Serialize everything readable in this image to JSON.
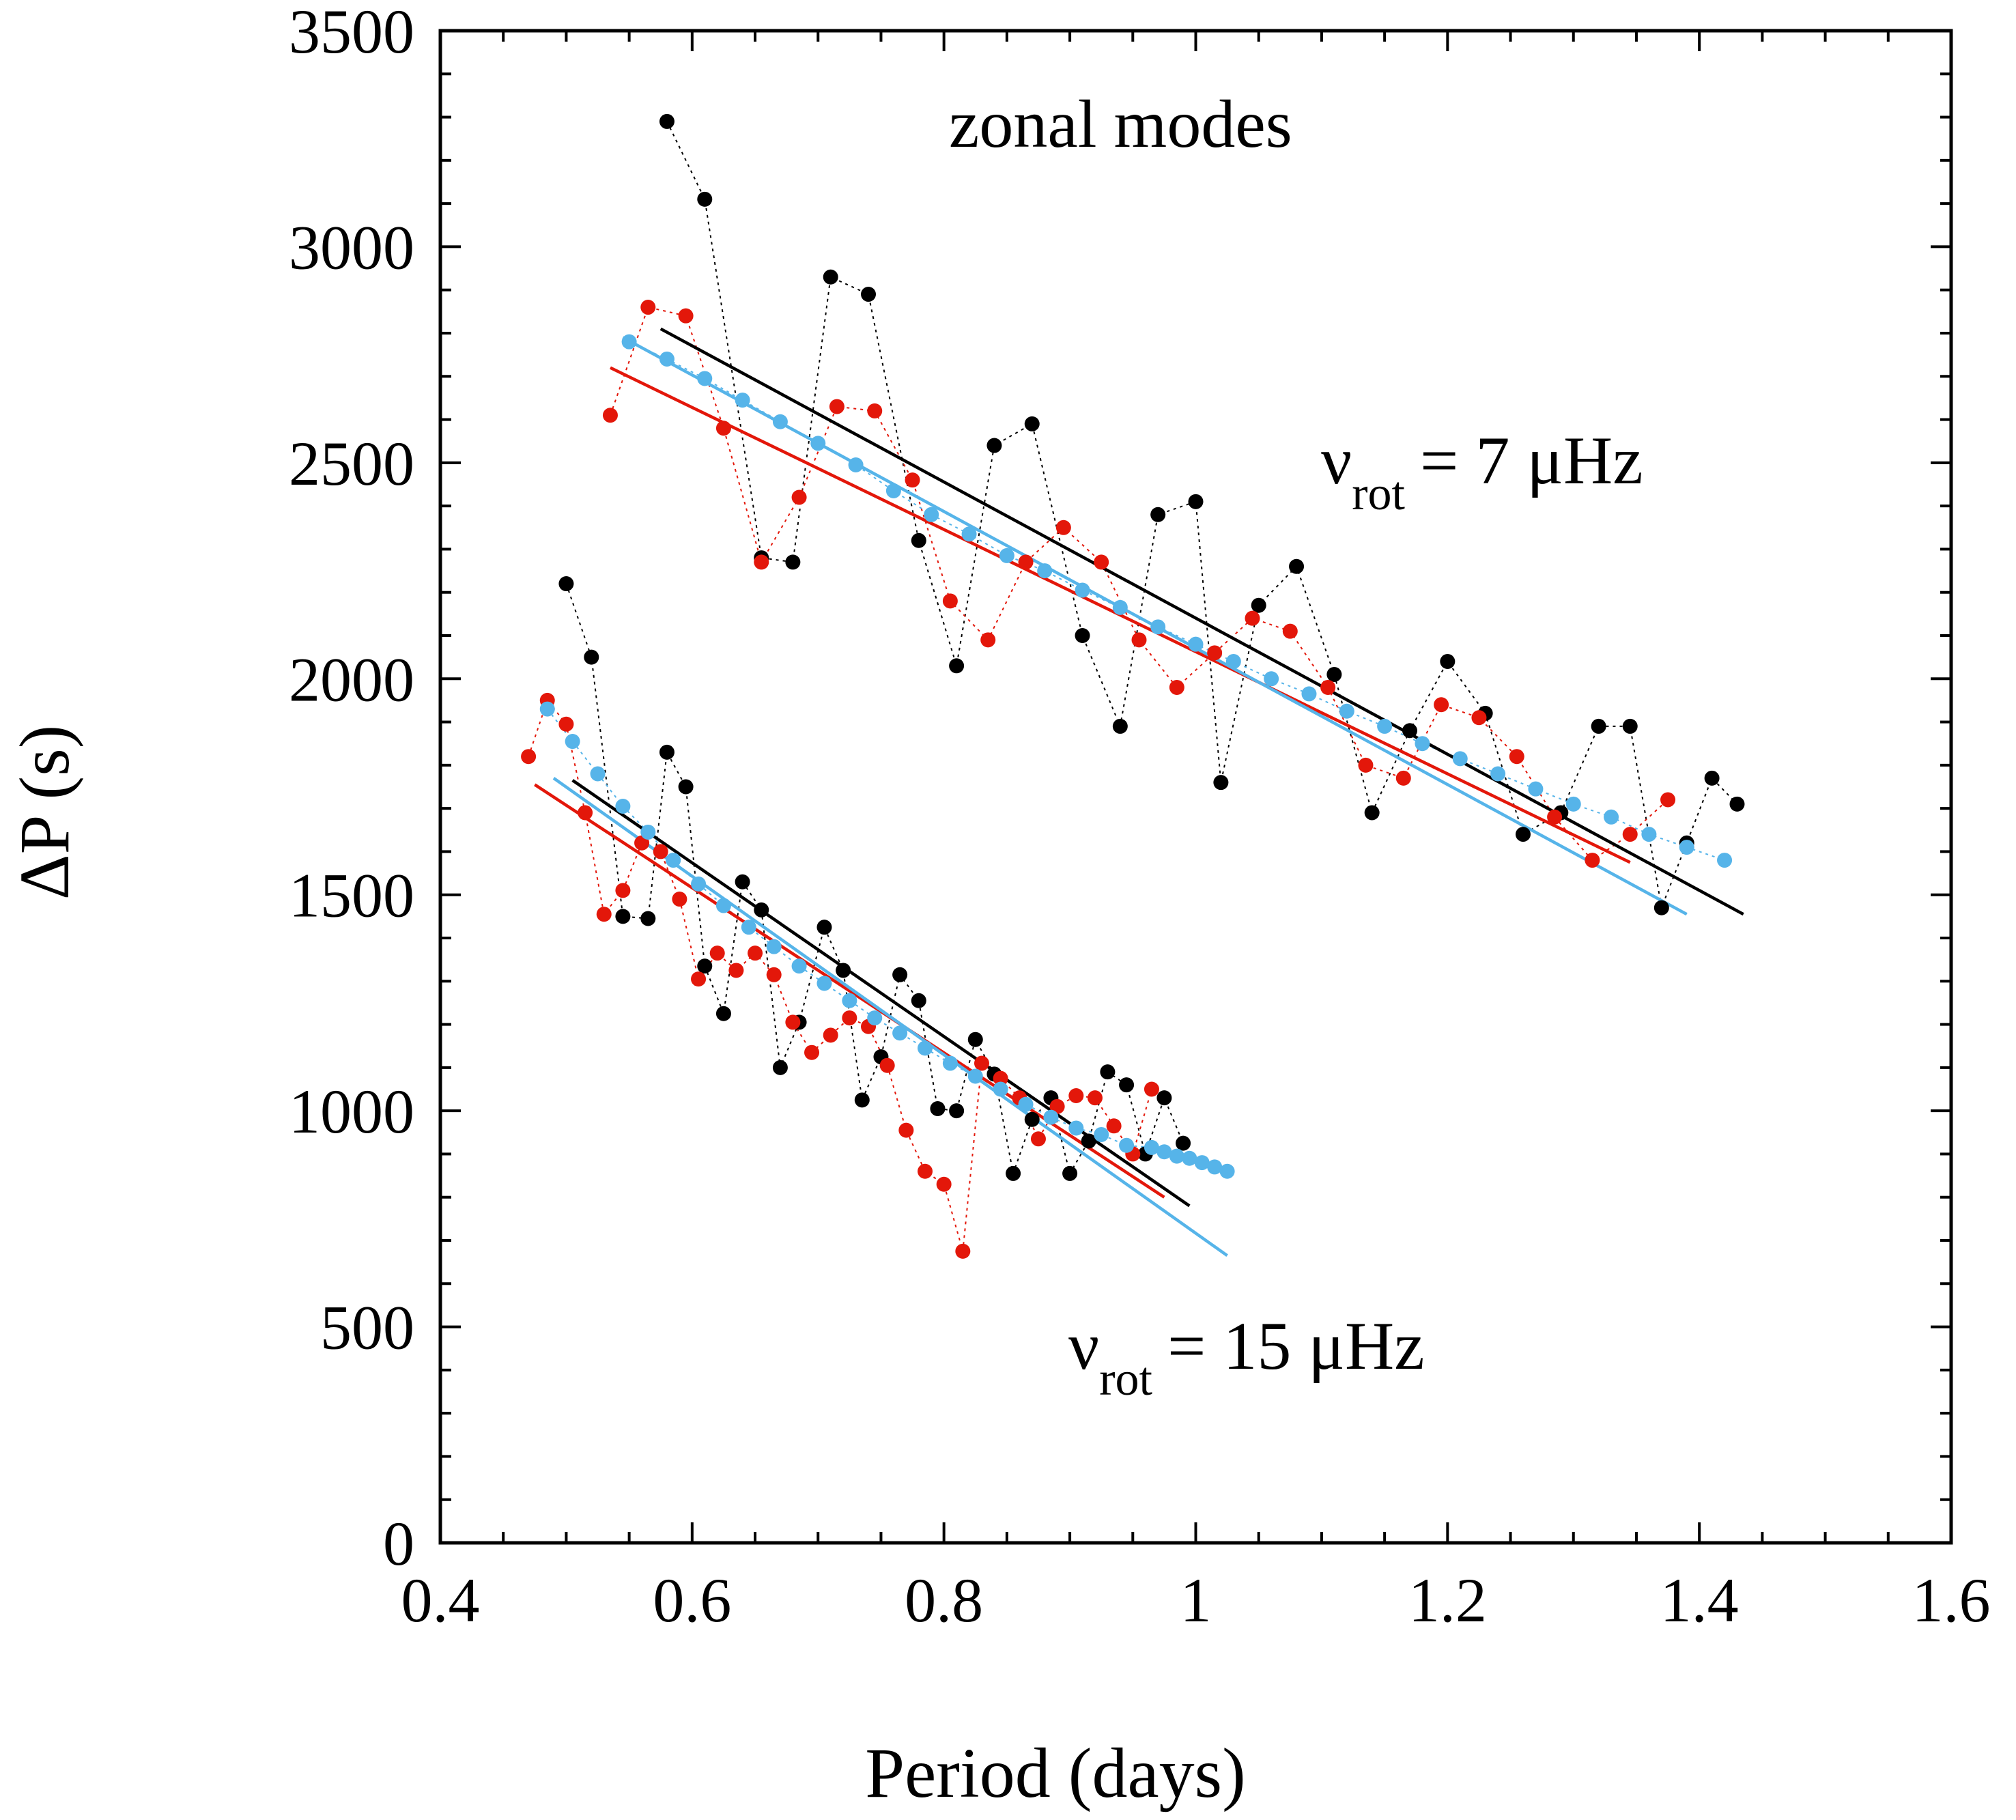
{
  "chart_data": {
    "type": "scatter",
    "title": "",
    "xlabel": "Period (days)",
    "ylabel": "ΔP (s)",
    "xlim": [
      0.4,
      1.6
    ],
    "ylim": [
      0,
      3500
    ],
    "x_ticks": [
      "0.4",
      "0.6",
      "0.8",
      "1",
      "1.2",
      "1.4",
      "1.6"
    ],
    "x_tick_values": [
      0.4,
      0.6,
      0.8,
      1.0,
      1.2,
      1.4,
      1.6
    ],
    "y_ticks": [
      "0",
      "500",
      "1000",
      "1500",
      "2000",
      "2500",
      "3000",
      "3500"
    ],
    "y_tick_values": [
      0,
      500,
      1000,
      1500,
      2000,
      2500,
      3000,
      3500
    ],
    "grid": false,
    "annotations": {
      "zonal": "zonal modes",
      "nu_symbol": "ν",
      "nu_sub": "rot",
      "rot7_value": "= 7 μHz",
      "rot15_value": "= 15 μHz"
    },
    "colors": {
      "black": "#000000",
      "red": "#e3170a",
      "blue": "#56b4e9"
    },
    "series": [
      {
        "group": "7 μHz",
        "color": "black",
        "x": [
          0.58,
          0.61,
          0.655,
          0.68,
          0.71,
          0.74,
          0.78,
          0.81,
          0.84,
          0.87,
          0.91,
          0.94,
          0.97,
          1.0,
          1.02,
          1.05,
          1.08,
          1.11,
          1.14,
          1.17,
          1.2,
          1.23,
          1.26,
          1.29,
          1.32,
          1.345,
          1.37,
          1.39,
          1.41,
          1.43
        ],
        "y": [
          3290,
          3110,
          2280,
          2270,
          2930,
          2890,
          2320,
          2030,
          2540,
          2590,
          2100,
          1890,
          2380,
          2410,
          1760,
          2170,
          2260,
          2010,
          1690,
          1880,
          2040,
          1920,
          1640,
          1690,
          1890,
          1890,
          1470,
          1620,
          1770,
          1710
        ]
      },
      {
        "group": "7 μHz",
        "color": "red",
        "x": [
          0.535,
          0.565,
          0.595,
          0.625,
          0.655,
          0.685,
          0.715,
          0.745,
          0.775,
          0.805,
          0.835,
          0.865,
          0.895,
          0.925,
          0.955,
          0.985,
          1.015,
          1.045,
          1.075,
          1.105,
          1.135,
          1.165,
          1.195,
          1.225,
          1.255,
          1.285,
          1.315,
          1.345,
          1.375
        ],
        "y": [
          2610,
          2860,
          2840,
          2580,
          2270,
          2420,
          2630,
          2620,
          2460,
          2180,
          2090,
          2270,
          2350,
          2270,
          2090,
          1980,
          2060,
          2140,
          2110,
          1980,
          1800,
          1770,
          1940,
          1910,
          1820,
          1680,
          1580,
          1640,
          1720
        ]
      },
      {
        "group": "7 μHz",
        "color": "blue",
        "x": [
          0.55,
          0.58,
          0.61,
          0.64,
          0.67,
          0.7,
          0.73,
          0.76,
          0.79,
          0.82,
          0.85,
          0.88,
          0.91,
          0.94,
          0.97,
          1.0,
          1.03,
          1.06,
          1.09,
          1.12,
          1.15,
          1.18,
          1.21,
          1.24,
          1.27,
          1.3,
          1.33,
          1.36,
          1.39,
          1.42
        ],
        "y": [
          2780,
          2740,
          2695,
          2645,
          2595,
          2545,
          2495,
          2435,
          2380,
          2335,
          2285,
          2250,
          2205,
          2165,
          2120,
          2080,
          2040,
          2000,
          1965,
          1925,
          1890,
          1850,
          1815,
          1780,
          1745,
          1710,
          1680,
          1640,
          1610,
          1580
        ]
      },
      {
        "group": "15 μHz",
        "color": "black",
        "x": [
          0.5,
          0.52,
          0.545,
          0.565,
          0.58,
          0.595,
          0.61,
          0.625,
          0.64,
          0.655,
          0.67,
          0.685,
          0.705,
          0.72,
          0.735,
          0.75,
          0.765,
          0.78,
          0.795,
          0.81,
          0.825,
          0.84,
          0.855,
          0.87,
          0.885,
          0.9,
          0.915,
          0.93,
          0.945,
          0.96,
          0.975,
          0.99
        ],
        "y": [
          2220,
          2050,
          1450,
          1445,
          1830,
          1750,
          1335,
          1225,
          1530,
          1465,
          1100,
          1205,
          1425,
          1325,
          1025,
          1125,
          1315,
          1255,
          1005,
          1000,
          1165,
          1085,
          855,
          980,
          1030,
          855,
          930,
          1090,
          1060,
          900,
          1030,
          925
        ]
      },
      {
        "group": "15 μHz",
        "color": "red",
        "x": [
          0.47,
          0.485,
          0.5,
          0.515,
          0.53,
          0.545,
          0.56,
          0.575,
          0.59,
          0.605,
          0.62,
          0.635,
          0.65,
          0.665,
          0.68,
          0.695,
          0.71,
          0.725,
          0.74,
          0.755,
          0.77,
          0.785,
          0.8,
          0.815,
          0.83,
          0.845,
          0.86,
          0.875,
          0.89,
          0.905,
          0.92,
          0.935,
          0.95,
          0.965
        ],
        "y": [
          1820,
          1950,
          1895,
          1690,
          1455,
          1510,
          1620,
          1600,
          1490,
          1305,
          1365,
          1325,
          1365,
          1315,
          1205,
          1135,
          1175,
          1215,
          1195,
          1105,
          955,
          860,
          830,
          675,
          1110,
          1075,
          1030,
          935,
          1010,
          1035,
          1030,
          965,
          900,
          1050
        ]
      },
      {
        "group": "15 μHz",
        "color": "blue",
        "x": [
          0.485,
          0.505,
          0.525,
          0.545,
          0.565,
          0.585,
          0.605,
          0.625,
          0.645,
          0.665,
          0.685,
          0.705,
          0.725,
          0.745,
          0.765,
          0.785,
          0.805,
          0.825,
          0.845,
          0.865,
          0.885,
          0.905,
          0.925,
          0.945,
          0.965,
          0.975,
          0.985,
          0.995,
          1.005,
          1.015,
          1.025
        ],
        "y": [
          1930,
          1855,
          1780,
          1705,
          1645,
          1580,
          1525,
          1475,
          1425,
          1380,
          1335,
          1295,
          1255,
          1215,
          1180,
          1145,
          1110,
          1080,
          1050,
          1015,
          985,
          960,
          945,
          920,
          915,
          905,
          895,
          890,
          880,
          870,
          860
        ]
      }
    ],
    "fits": [
      {
        "group": "7 μHz",
        "color": "black",
        "x": [
          0.575,
          1.435
        ],
        "y": [
          2810,
          1455
        ]
      },
      {
        "group": "7 μHz",
        "color": "red",
        "x": [
          0.535,
          1.345
        ],
        "y": [
          2720,
          1575
        ]
      },
      {
        "group": "7 μHz",
        "color": "blue",
        "x": [
          0.545,
          1.39
        ],
        "y": [
          2790,
          1455
        ]
      },
      {
        "group": "15 μHz",
        "color": "black",
        "x": [
          0.505,
          0.995
        ],
        "y": [
          1765,
          780
        ]
      },
      {
        "group": "15 μHz",
        "color": "red",
        "x": [
          0.475,
          0.975
        ],
        "y": [
          1755,
          800
        ]
      },
      {
        "group": "15 μHz",
        "color": "blue",
        "x": [
          0.49,
          1.025
        ],
        "y": [
          1770,
          665
        ]
      }
    ]
  }
}
